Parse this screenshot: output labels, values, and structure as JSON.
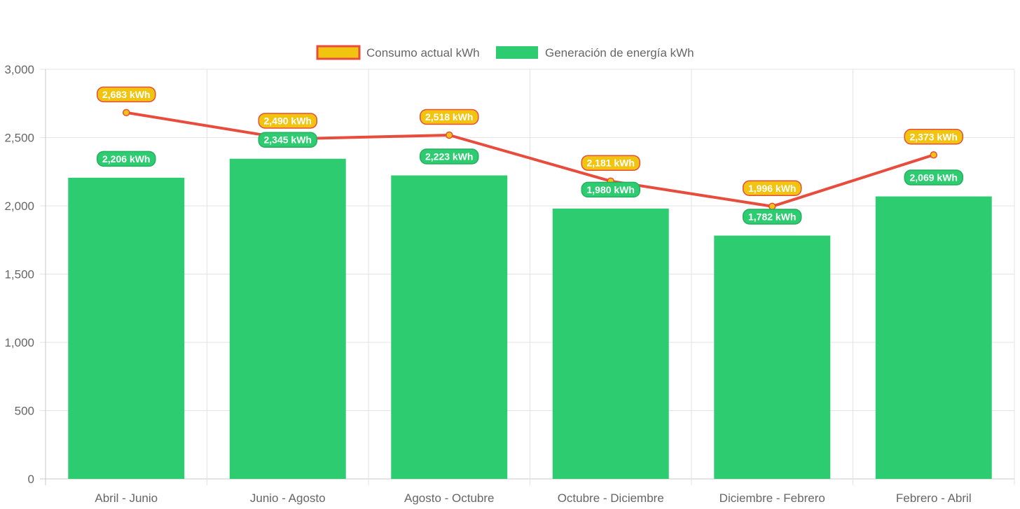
{
  "chart_data": {
    "type": "bar",
    "categories": [
      "Abril - Junio",
      "Junio - Agosto",
      "Agosto - Octubre",
      "Octubre - Diciembre",
      "Diciembre - Febrero",
      "Febrero - Abril"
    ],
    "series": [
      {
        "name": "Consumo actual kWh",
        "type": "line",
        "values": [
          2683,
          2490,
          2518,
          2181,
          1996,
          2373
        ],
        "labels": [
          "2,683 kWh",
          "2,490 kWh",
          "2,518 kWh",
          "2,181 kWh",
          "1,996 kWh",
          "2,373 kWh"
        ],
        "color": "#e74c3c",
        "fill_color": "#f1c40f"
      },
      {
        "name": "Generación de energía kWh",
        "type": "bar",
        "values": [
          2206,
          2345,
          2223,
          1980,
          1782,
          2069
        ],
        "labels": [
          "2,206 kWh",
          "2,345 kWh",
          "2,223 kWh",
          "1,980 kWh",
          "1,782 kWh",
          "2,069 kWh"
        ],
        "color": "#2ecc71"
      }
    ],
    "y_ticks": [
      "0",
      "500",
      "1,000",
      "1,500",
      "2,000",
      "2,500",
      "3,000"
    ],
    "ylim": [
      0,
      3000
    ],
    "grid": true,
    "legend_position": "top-center",
    "title": "",
    "xlabel": "",
    "ylabel": ""
  }
}
